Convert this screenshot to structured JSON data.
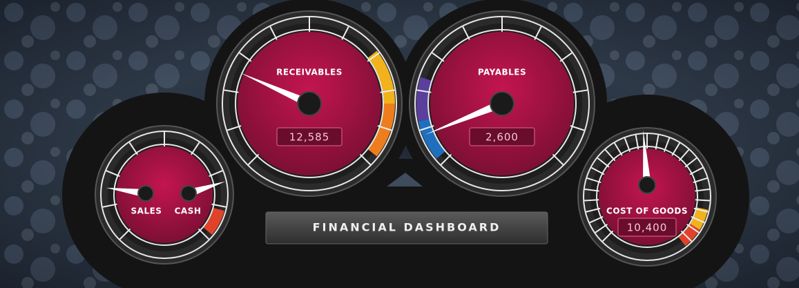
{
  "title": "FINANCIAL DASHBOARD",
  "gauges": [
    {
      "label": "RECEIVABLES",
      "value": "12,585"
    },
    {
      "label": "PAYABLES",
      "value": "2,600"
    },
    {
      "label": "SALES"
    },
    {
      "label": "CASH"
    },
    {
      "label": "COST OF GOODS",
      "value": "10,400"
    }
  ]
}
